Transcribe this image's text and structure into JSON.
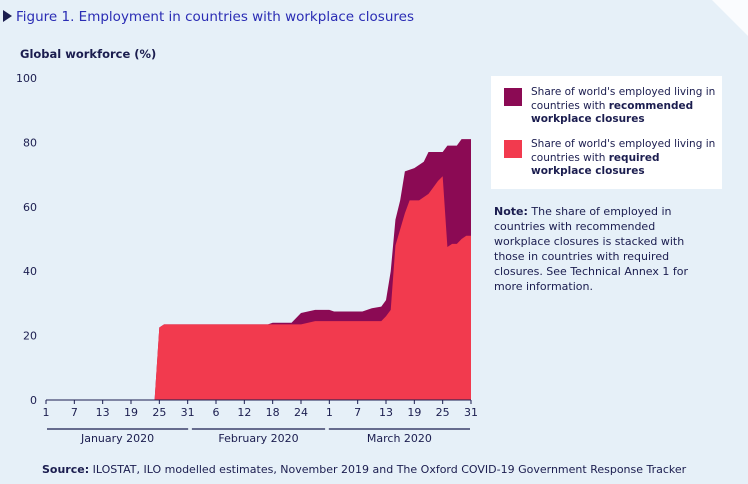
{
  "figure": {
    "title": "Figure 1. Employment in countries with workplace closures",
    "source_label": "Source:",
    "source_text": " ILOSTAT, ILO modelled estimates, November 2019 and The Oxford COVID-19 Government Response Tracker"
  },
  "legend": {
    "recommended": {
      "text": "Share of world's employed living in countries with ",
      "bold": "recommended workplace closures"
    },
    "required": {
      "text": "Share of world's employed living in countries with ",
      "bold": "required workplace closures"
    }
  },
  "note": {
    "label": "Note:",
    "text": " The share of employed in countries with recommended workplace closures is stacked with those in countries with required closures. See Technical Annex 1 for more information."
  },
  "colors": {
    "background": "#e6f0f8",
    "recommended": "#8b0a54",
    "required": "#f23a4e",
    "title": "#2a2cb4",
    "text": "#1b1d4f"
  },
  "chart_data": {
    "type": "area",
    "stacked": true,
    "ylabel": "Global workforce (%)",
    "ylim": [
      0,
      100
    ],
    "yticks": [
      "0",
      "20",
      "40",
      "60",
      "80",
      "100"
    ],
    "grid": false,
    "legend_position": "right",
    "months": [
      {
        "name": "January 2020",
        "days": 31
      },
      {
        "name": "February 2020",
        "days": 29
      },
      {
        "name": "March 2020",
        "days": 31
      }
    ],
    "tick_days": [
      [
        "1",
        "7",
        "13",
        "19",
        "25",
        "31"
      ],
      [
        "6",
        "12",
        "18",
        "24"
      ],
      [
        "1",
        "7",
        "13",
        "19",
        "25",
        "31"
      ]
    ],
    "series": [
      {
        "name": "required workplace closures",
        "color": "#f23a4e",
        "points": [
          [
            "2020-01-01",
            0
          ],
          [
            "2020-01-24",
            0
          ],
          [
            "2020-01-25",
            22.5
          ],
          [
            "2020-01-26",
            23.5
          ],
          [
            "2020-02-18",
            23.5
          ],
          [
            "2020-02-24",
            23.5
          ],
          [
            "2020-02-27",
            24.5
          ],
          [
            "2020-03-12",
            24.5
          ],
          [
            "2020-03-13",
            26
          ],
          [
            "2020-03-14",
            28
          ],
          [
            "2020-03-15",
            48
          ],
          [
            "2020-03-17",
            58
          ],
          [
            "2020-03-18",
            62
          ],
          [
            "2020-03-20",
            62
          ],
          [
            "2020-03-22",
            64
          ],
          [
            "2020-03-23",
            66
          ],
          [
            "2020-03-24",
            68
          ],
          [
            "2020-03-25",
            69.5
          ],
          [
            "2020-03-26",
            47.5
          ],
          [
            "2020-03-27",
            48.5
          ],
          [
            "2020-03-28",
            48.5
          ],
          [
            "2020-03-29",
            50
          ],
          [
            "2020-03-30",
            51
          ],
          [
            "2020-03-31",
            51
          ]
        ]
      },
      {
        "name": "recommended workplace closures",
        "color": "#8b0a54",
        "points": [
          [
            "2020-01-01",
            0
          ],
          [
            "2020-01-24",
            0
          ],
          [
            "2020-01-25",
            22.5
          ],
          [
            "2020-01-26",
            23.5
          ],
          [
            "2020-02-17",
            23.5
          ],
          [
            "2020-02-18",
            24
          ],
          [
            "2020-02-22",
            24
          ],
          [
            "2020-02-24",
            27
          ],
          [
            "2020-02-27",
            28
          ],
          [
            "2020-03-01",
            28
          ],
          [
            "2020-03-02",
            27.5
          ],
          [
            "2020-03-08",
            27.5
          ],
          [
            "2020-03-10",
            28.5
          ],
          [
            "2020-03-12",
            29
          ],
          [
            "2020-03-13",
            31
          ],
          [
            "2020-03-14",
            40
          ],
          [
            "2020-03-15",
            56
          ],
          [
            "2020-03-16",
            62
          ],
          [
            "2020-03-17",
            71
          ],
          [
            "2020-03-19",
            72
          ],
          [
            "2020-03-21",
            74
          ],
          [
            "2020-03-22",
            77
          ],
          [
            "2020-03-25",
            77
          ],
          [
            "2020-03-26",
            79
          ],
          [
            "2020-03-28",
            79
          ],
          [
            "2020-03-29",
            81
          ],
          [
            "2020-03-31",
            81
          ]
        ]
      }
    ]
  }
}
